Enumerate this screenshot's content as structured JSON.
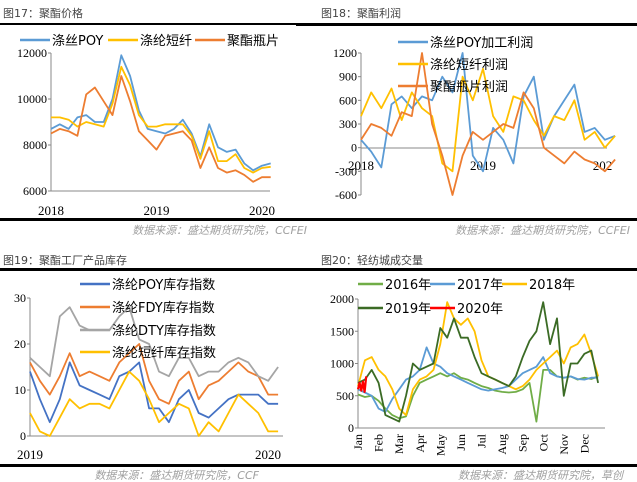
{
  "figures": [
    {
      "heading": "图17：聚酯价格",
      "source": "数据来源：盛达期货研究院，CCFEI"
    },
    {
      "heading": "图18：聚酯利润",
      "source": "数据来源：盛达期货研究院，CCFEI"
    },
    {
      "heading": "图19：聚酯工厂产品库存",
      "source": "数据来源：盛达期货研究院，CCF"
    },
    {
      "heading": "图20：轻纺城成交量",
      "source": "数据来源：盛达期货研究院，草创"
    }
  ],
  "chart_data": [
    {
      "id": "c17",
      "type": "line",
      "title": "聚酯价格",
      "x_start": 2018.0,
      "x_step": 0.0833,
      "xticks": [
        {
          "v": 2018,
          "label": "2018"
        },
        {
          "v": 2019,
          "label": "2019"
        },
        {
          "v": 2020,
          "label": "2020"
        }
      ],
      "ylim": [
        6000,
        12000
      ],
      "yticks": [
        6000,
        8000,
        10000,
        12000
      ],
      "legend_placement": "top",
      "series": [
        {
          "name": "涤丝POY",
          "color": "#5b9bd5",
          "values": [
            8700,
            8900,
            8700,
            9200,
            9300,
            9000,
            9000,
            10000,
            11900,
            11000,
            9500,
            8700,
            8600,
            8500,
            8700,
            9100,
            8500,
            7500,
            8900,
            7900,
            7700,
            7800,
            7200,
            6900,
            7100,
            7200
          ]
        },
        {
          "name": "涤纶短纤",
          "color": "#ffc000",
          "values": [
            9200,
            9200,
            9100,
            8800,
            9000,
            8900,
            8800,
            9800,
            11400,
            10600,
            9300,
            8800,
            8800,
            8900,
            8900,
            8900,
            8400,
            7400,
            8600,
            7300,
            7300,
            7600,
            7000,
            6800,
            7000,
            7050
          ]
        },
        {
          "name": "聚酯瓶片",
          "color": "#ed7d31",
          "values": [
            8500,
            8700,
            8600,
            8400,
            10200,
            10500,
            9900,
            9300,
            11000,
            9900,
            8600,
            8200,
            7800,
            8400,
            8500,
            8600,
            8200,
            7000,
            7900,
            7000,
            6800,
            6900,
            6700,
            6400,
            6600,
            6600
          ]
        }
      ]
    },
    {
      "id": "c18",
      "type": "line",
      "title": "聚酯利润",
      "x_start": 2018.0,
      "x_step": 0.0833,
      "xticks": [
        {
          "v": 2018,
          "label": "2018"
        },
        {
          "v": 2019,
          "label": "2019"
        },
        {
          "v": 1.98,
          "label": "202",
          "at": 2019.98
        }
      ],
      "ylim": [
        -600,
        1200
      ],
      "yticks": [
        -600,
        -300,
        0,
        300,
        600,
        900,
        1200
      ],
      "legend_placement": "top-left",
      "series": [
        {
          "name": "涤丝POY加工利润",
          "color": "#5b9bd5",
          "values": [
            100,
            -50,
            -250,
            550,
            650,
            500,
            650,
            600,
            900,
            700,
            1200,
            -100,
            -300,
            250,
            100,
            -200,
            650,
            900,
            100,
            400,
            600,
            800,
            200,
            250,
            100,
            150
          ]
        },
        {
          "name": "涤纶短纤利润",
          "color": "#ffc000",
          "values": [
            400,
            700,
            500,
            750,
            350,
            700,
            500,
            400,
            -200,
            -300,
            900,
            600,
            1000,
            400,
            200,
            650,
            600,
            350,
            150,
            400,
            350,
            600,
            100,
            200,
            0,
            150
          ]
        },
        {
          "name": "聚酯瓶片利润",
          "color": "#ed7d31",
          "values": [
            100,
            300,
            250,
            150,
            450,
            400,
            1200,
            300,
            -100,
            -600,
            -100,
            200,
            100,
            200,
            300,
            250,
            700,
            500,
            0,
            -100,
            -200,
            -50,
            -150,
            -200,
            -300,
            -150
          ]
        }
      ]
    },
    {
      "id": "c19",
      "type": "line",
      "title": "聚酯工厂产品库存",
      "x_start": 2019.0,
      "x_step": 0.0417,
      "xticks": [
        {
          "v": 2019,
          "label": "2019"
        },
        {
          "v": 2020,
          "label": "2020"
        }
      ],
      "ylim": [
        0,
        30
      ],
      "yticks": [
        0,
        10,
        20,
        30
      ],
      "legend_placement": "top",
      "series": [
        {
          "name": "涤纶POY库存指数",
          "color": "#4472c4",
          "values": [
            14,
            8,
            3,
            8,
            16,
            11,
            10,
            9,
            8,
            13,
            14,
            16,
            6,
            6,
            3,
            8,
            10,
            5,
            4,
            6,
            8,
            9,
            9,
            9,
            7,
            7
          ]
        },
        {
          "name": "涤纶FDY库存指数",
          "color": "#ed7d31",
          "values": [
            16,
            12,
            9,
            13,
            18,
            13,
            14,
            13,
            12,
            16,
            18,
            20,
            12,
            8,
            7,
            12,
            14,
            8,
            11,
            12,
            14,
            16,
            14,
            13,
            9,
            9
          ]
        },
        {
          "name": "涤纶DTY库存指数",
          "color": "#a5a5a5",
          "values": [
            17,
            15,
            13,
            26,
            28,
            24,
            23,
            23,
            23,
            26,
            28,
            21,
            20,
            14,
            13,
            17,
            17,
            13,
            14,
            14,
            16,
            17,
            16,
            13,
            12,
            15
          ]
        },
        {
          "name": "涤纶短纤库存指数",
          "color": "#ffc000",
          "values": [
            5,
            1,
            0,
            4,
            8,
            6,
            7,
            7,
            6,
            10,
            14,
            12,
            8,
            3,
            5,
            7,
            6,
            0,
            3,
            1,
            5,
            9,
            7,
            5,
            1,
            1
          ]
        }
      ]
    },
    {
      "id": "c20",
      "type": "line",
      "title": "轻纺城成交量",
      "x_unit": "month",
      "xticks": [
        {
          "v": 0,
          "label": "Jan"
        },
        {
          "v": 1,
          "label": "Feb"
        },
        {
          "v": 2,
          "label": "Mar"
        },
        {
          "v": 3,
          "label": "Apr"
        },
        {
          "v": 4,
          "label": "May"
        },
        {
          "v": 5,
          "label": "Jun"
        },
        {
          "v": 6,
          "label": "Jul"
        },
        {
          "v": 7,
          "label": "Aug"
        },
        {
          "v": 8,
          "label": "Sep"
        },
        {
          "v": 9,
          "label": "Oct"
        },
        {
          "v": 10,
          "label": "Nov"
        },
        {
          "v": 11,
          "label": "Dec"
        }
      ],
      "ylim": [
        0,
        2000
      ],
      "yticks": [
        0,
        500,
        1000,
        1500,
        2000
      ],
      "legend_placement": "top",
      "series": [
        {
          "name": "2016年",
          "color": "#70ad47",
          "x_start": 0,
          "x_step": 0.3333,
          "values": [
            520,
            480,
            500,
            420,
            300,
            200,
            150,
            180,
            500,
            700,
            750,
            800,
            850,
            800,
            850,
            780,
            750,
            700,
            650,
            620,
            580,
            560,
            550,
            560,
            600,
            700,
            100,
            900,
            900,
            800,
            780,
            800,
            750,
            780,
            760,
            800
          ]
        },
        {
          "name": "2017年",
          "color": "#5b9bd5",
          "x_start": 0,
          "x_step": 0.3333,
          "values": [
            600,
            550,
            500,
            300,
            250,
            450,
            600,
            750,
            800,
            900,
            1250,
            1000,
            950,
            850,
            800,
            750,
            700,
            650,
            600,
            580,
            600,
            620,
            650,
            750,
            850,
            900,
            950,
            1100,
            850,
            800,
            780,
            800,
            760,
            750,
            780,
            780
          ]
        },
        {
          "name": "2018年",
          "color": "#ffc000",
          "x_start": 0,
          "x_step": 0.3333,
          "values": [
            650,
            1050,
            1100,
            900,
            800,
            600,
            300,
            200,
            600,
            750,
            800,
            900,
            1300,
            1950,
            1700,
            1600,
            1700,
            1500,
            1050,
            800,
            750,
            700,
            650,
            600,
            650,
            750,
            900,
            1000,
            1100,
            1200,
            1000,
            1250,
            1300,
            1450,
            1150,
            800
          ]
        },
        {
          "name": "2019年",
          "color": "#3b6b25",
          "x_start": 0,
          "x_step": 0.3333,
          "values": [
            700,
            750,
            900,
            700,
            200,
            150,
            100,
            500,
            1000,
            900,
            950,
            1000,
            1550,
            1400,
            1700,
            1400,
            1400,
            1100,
            850,
            800,
            750,
            700,
            650,
            800,
            1100,
            1350,
            1500,
            1950,
            1300,
            1700,
            500,
            1000,
            1000,
            1150,
            1200,
            700
          ]
        },
        {
          "name": "2020年",
          "color": "#ff0000",
          "x_start": 0,
          "x_step": 0.08,
          "values": [
            600,
            700,
            580,
            720,
            560,
            800
          ]
        }
      ]
    }
  ]
}
